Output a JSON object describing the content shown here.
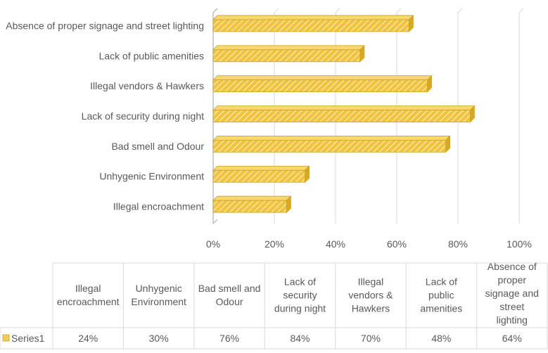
{
  "chart_data": {
    "type": "bar",
    "orientation": "horizontal",
    "categories": [
      "Illegal encroachment",
      "Unhygenic Environment",
      "Bad smell and Odour",
      "Lack of security during night",
      "Illegal vendors & Hawkers",
      "Lack of public amenities",
      "Absence of proper signage and street lighting"
    ],
    "series": [
      {
        "name": "Series1",
        "values": [
          24,
          30,
          76,
          84,
          70,
          48,
          64
        ]
      }
    ],
    "x_ticks": [
      "0%",
      "20%",
      "40%",
      "60%",
      "80%",
      "100%"
    ],
    "xlim": [
      0,
      100
    ],
    "grid": true,
    "data_table": {
      "headers": [
        "Illegal encroachment",
        "Unhygenic Environment",
        "Bad smell and Odour",
        "Lack of security during night",
        "Illegal vendors & Hawkers",
        "Lack of public amenities",
        "Absence of proper signage and street lighting"
      ],
      "rows": [
        {
          "label": "Series1",
          "values": [
            "24%",
            "30%",
            "76%",
            "84%",
            "70%",
            "48%",
            "64%"
          ]
        }
      ]
    },
    "colors": {
      "bar_fill": "#f2c43d",
      "bar_hatch": "#ffffff",
      "bar_edge": "#c9a227",
      "grid": "#d9d9d9",
      "text": "#595959"
    }
  }
}
